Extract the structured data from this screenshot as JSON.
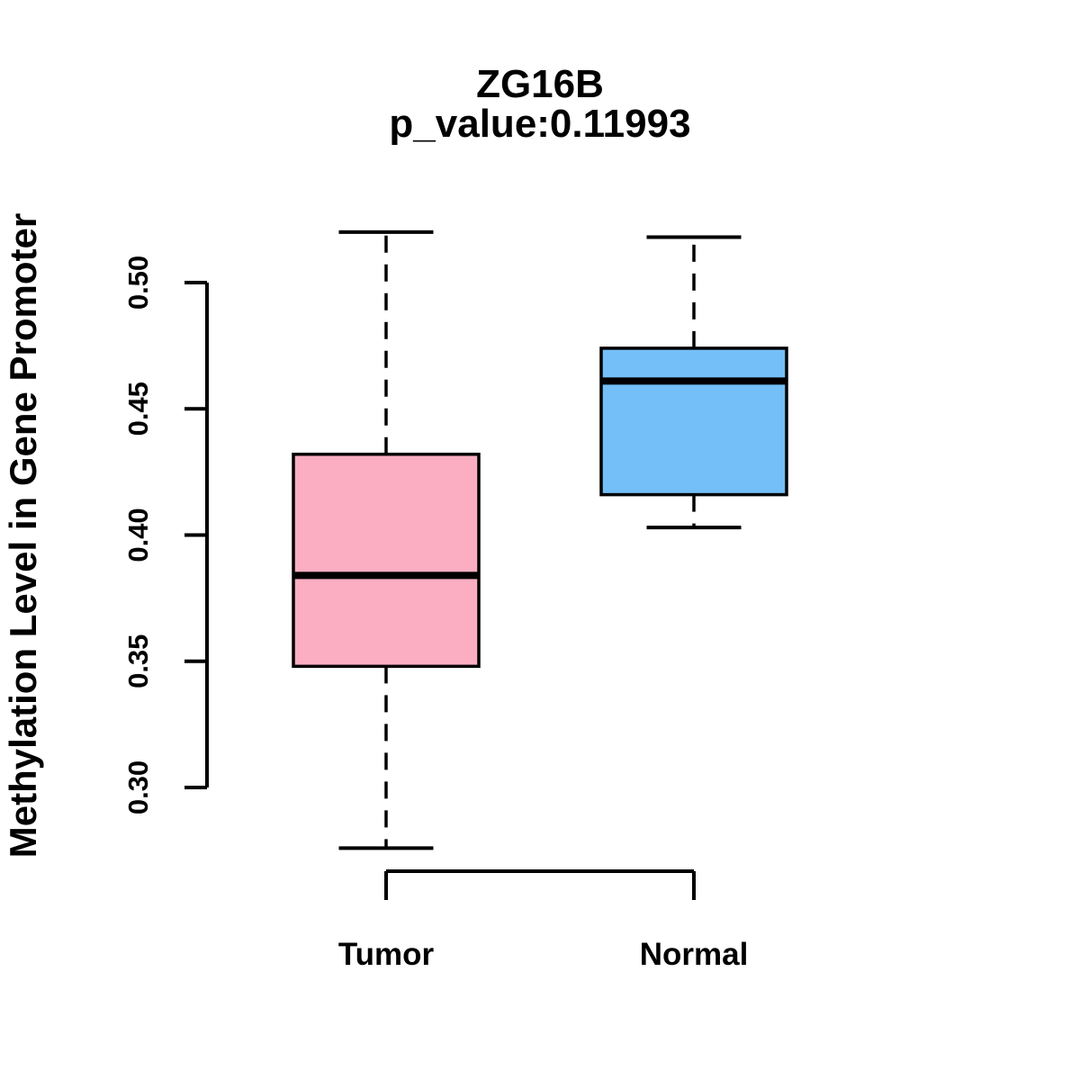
{
  "chart_data": {
    "type": "boxplot",
    "title": "ZG16B",
    "subtitle": "p_value:0.11993",
    "ylabel": "Methylation Level in Gene Promoter",
    "categories": [
      "Tumor",
      "Normal"
    ],
    "groups": [
      {
        "name": "Tumor",
        "fill_color": "#FBAEC2",
        "whisker_low": 0.276,
        "q1": 0.348,
        "median": 0.384,
        "q3": 0.432,
        "whisker_high": 0.52
      },
      {
        "name": "Normal",
        "fill_color": "#74BFF7",
        "whisker_low": 0.403,
        "q1": 0.416,
        "median": 0.461,
        "q3": 0.474,
        "whisker_high": 0.518
      }
    ],
    "y_axis": {
      "ticks": [
        "0.30",
        "0.35",
        "0.40",
        "0.45",
        "0.50"
      ],
      "tick_values": [
        0.3,
        0.35,
        0.4,
        0.45,
        0.5
      ],
      "range": [
        0.3,
        0.5
      ]
    },
    "line_color": "#000000",
    "background_color": "#FFFFFF",
    "legend": "none",
    "grid": "off"
  }
}
